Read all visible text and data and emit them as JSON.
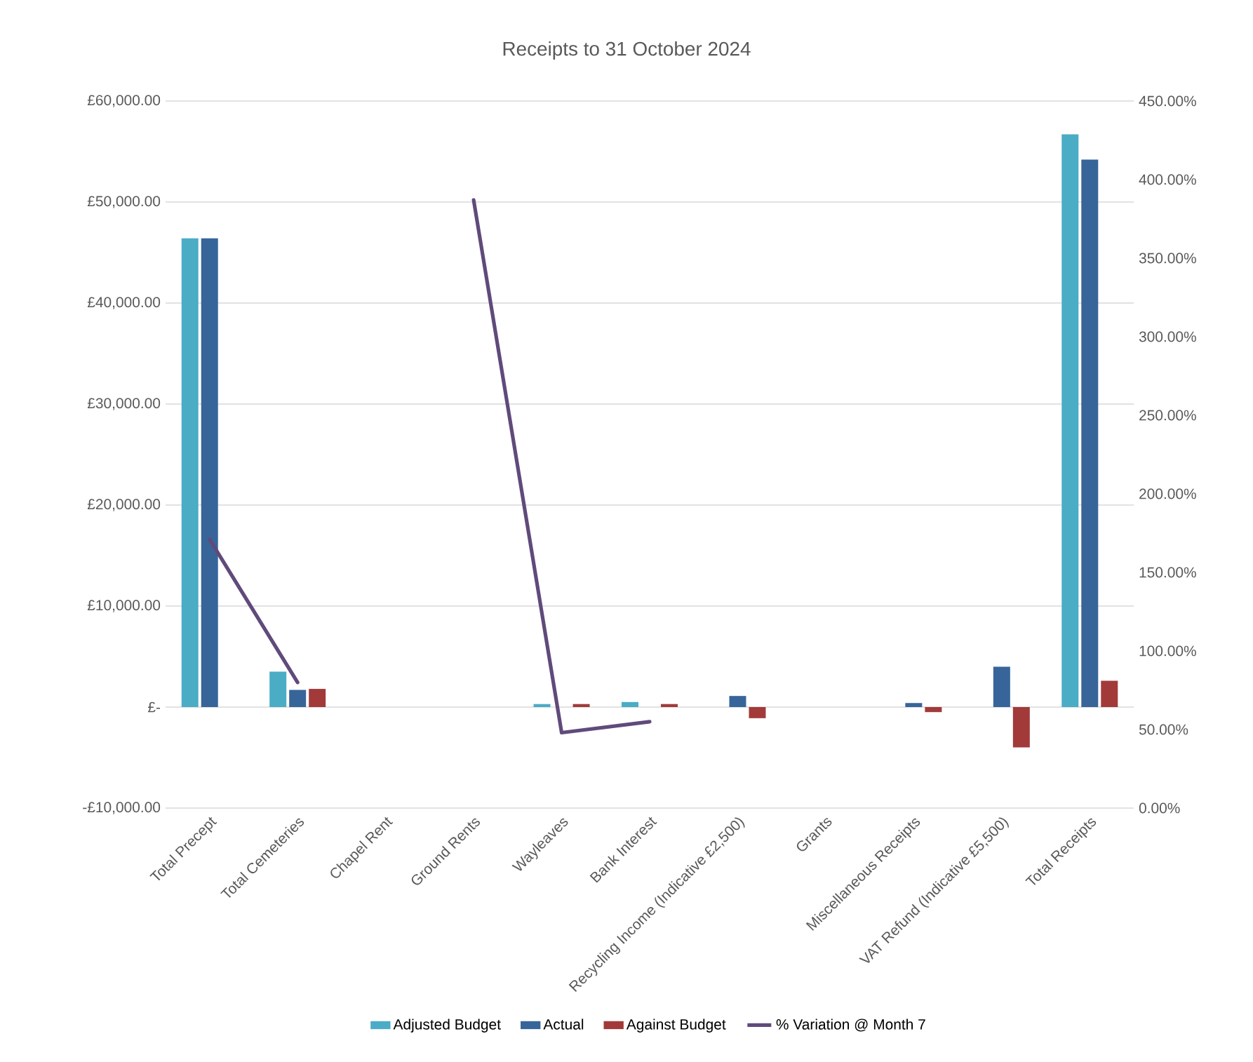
{
  "chart_data": {
    "type": "bar",
    "title": "Receipts to 31 October 2024",
    "categories": [
      "Total Precept",
      "Total Cemeteries",
      "Chapel Rent",
      "Ground Rents",
      "Wayleaves",
      "Bank Interest",
      "Recycling Income (Indicative £2,500)",
      "Grants",
      "Miscellaneous Receipts",
      "VAT Refund (Indicative £5,500)",
      "Total Receipts"
    ],
    "series": [
      {
        "name": "Adjusted Budget",
        "color": "#4bacc6",
        "values": [
          46400,
          3500,
          0,
          0,
          300,
          500,
          0,
          0,
          0,
          0,
          56700
        ]
      },
      {
        "name": "Actual",
        "color": "#376599",
        "values": [
          46400,
          1700,
          0,
          0,
          0,
          0,
          1100,
          0,
          400,
          4000,
          54200
        ]
      },
      {
        "name": "Against Budget",
        "color": "#a23a3a",
        "values": [
          0,
          1800,
          0,
          0,
          300,
          300,
          -1100,
          0,
          -500,
          -4000,
          2600
        ]
      },
      {
        "name": "% Variation @ Month 7",
        "type": "line",
        "axis": "y2",
        "color": "#604a7b",
        "values": [
          171,
          80,
          null,
          387,
          48,
          55,
          null,
          null,
          null,
          null,
          null
        ]
      }
    ],
    "ylim": [
      -10000,
      60000
    ],
    "yticks": [
      {
        "value": -10000,
        "label": "-£10,000.00"
      },
      {
        "value": 0,
        "label": "£-"
      },
      {
        "value": 10000,
        "label": "£10,000.00"
      },
      {
        "value": 20000,
        "label": "£20,000.00"
      },
      {
        "value": 30000,
        "label": "£30,000.00"
      },
      {
        "value": 40000,
        "label": "£40,000.00"
      },
      {
        "value": 50000,
        "label": "£50,000.00"
      },
      {
        "value": 60000,
        "label": "£60,000.00"
      }
    ],
    "y2lim": [
      0,
      450
    ],
    "y2ticks": [
      {
        "value": 0,
        "label": "0.00%"
      },
      {
        "value": 50,
        "label": "50.00%"
      },
      {
        "value": 100,
        "label": "100.00%"
      },
      {
        "value": 150,
        "label": "150.00%"
      },
      {
        "value": 200,
        "label": "200.00%"
      },
      {
        "value": 250,
        "label": "250.00%"
      },
      {
        "value": 300,
        "label": "300.00%"
      },
      {
        "value": 350,
        "label": "350.00%"
      },
      {
        "value": 400,
        "label": "400.00%"
      },
      {
        "value": 450,
        "label": "450.00%"
      }
    ],
    "grid": "y",
    "legend": "bottom"
  }
}
